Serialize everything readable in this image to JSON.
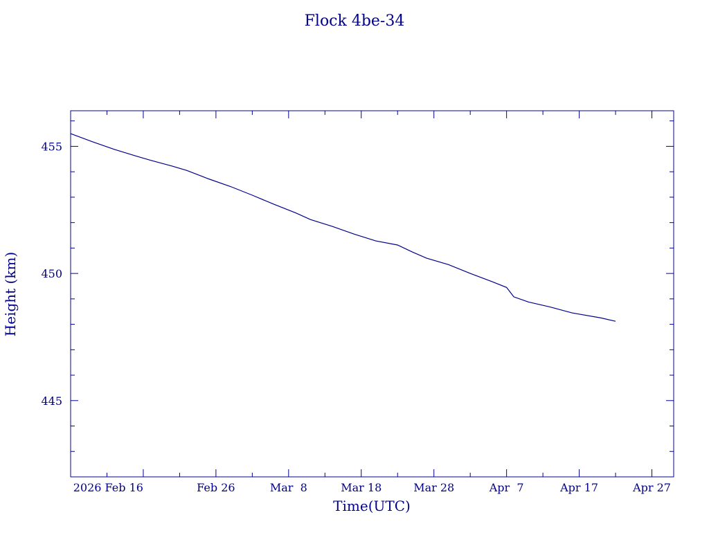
{
  "chart_data": {
    "type": "line",
    "title": "Flock 4be-34",
    "xlabel": "Time(UTC)",
    "ylabel": "Height (km)",
    "x_ticks": [
      "2026 Feb 16",
      "Feb 26",
      "Mar  8",
      "Mar 18",
      "Mar 28",
      "Apr  7",
      "Apr 17",
      "Apr 27"
    ],
    "y_ticks": [
      "445",
      "450",
      "455"
    ],
    "xlim": [
      "2026-02-06",
      "2026-04-30"
    ],
    "ylim": [
      442.0,
      456.4
    ],
    "grid": false,
    "colors": {
      "axes": "#00008B",
      "line": "#00008B",
      "background": "#ffffff"
    },
    "series": [
      {
        "points": [
          [
            "2026-02-06",
            455.5
          ],
          [
            "2026-02-09",
            455.18
          ],
          [
            "2026-02-12",
            454.88
          ],
          [
            "2026-02-15",
            454.62
          ],
          [
            "2026-02-17",
            454.45
          ],
          [
            "2026-02-20",
            454.22
          ],
          [
            "2026-02-22",
            454.05
          ],
          [
            "2026-02-25",
            453.72
          ],
          [
            "2026-02-28",
            453.42
          ],
          [
            "2026-03-03",
            453.08
          ],
          [
            "2026-03-06",
            452.72
          ],
          [
            "2026-03-09",
            452.38
          ],
          [
            "2026-03-11",
            452.12
          ],
          [
            "2026-03-14",
            451.85
          ],
          [
            "2026-03-17",
            451.55
          ],
          [
            "2026-03-20",
            451.28
          ],
          [
            "2026-03-23",
            451.12
          ],
          [
            "2026-03-25",
            450.85
          ],
          [
            "2026-03-27",
            450.6
          ],
          [
            "2026-03-30",
            450.35
          ],
          [
            "2026-04-02",
            450.0
          ],
          [
            "2026-04-05",
            449.68
          ],
          [
            "2026-04-07",
            449.45
          ],
          [
            "2026-04-08",
            449.08
          ],
          [
            "2026-04-10",
            448.88
          ],
          [
            "2026-04-13",
            448.68
          ],
          [
            "2026-04-16",
            448.45
          ],
          [
            "2026-04-20",
            448.25
          ],
          [
            "2026-04-22",
            448.12
          ]
        ]
      }
    ]
  }
}
